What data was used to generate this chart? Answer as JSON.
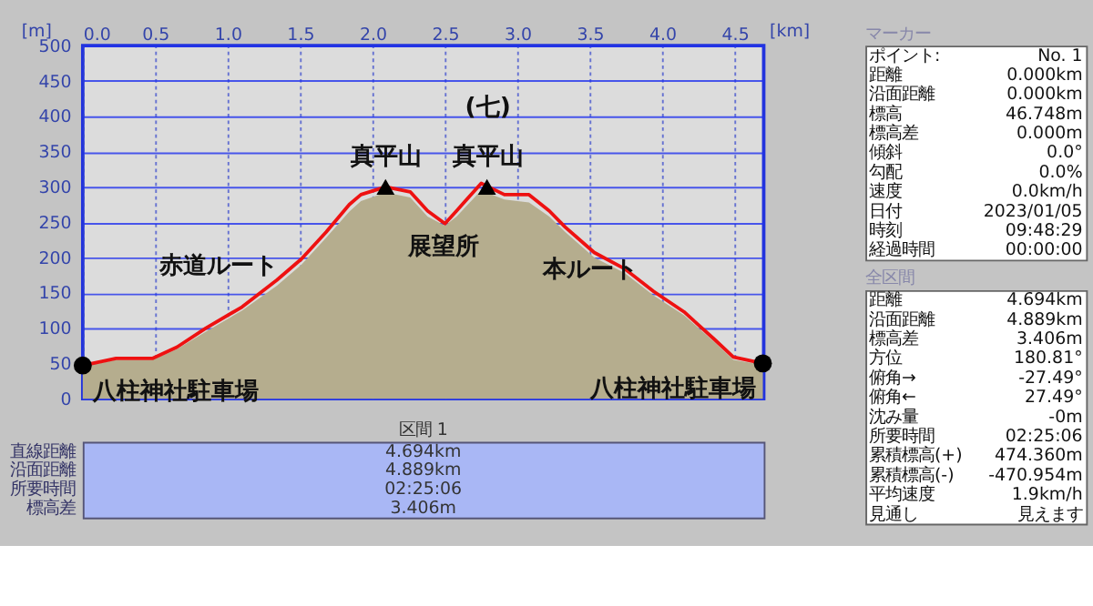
{
  "chart_data": [
    {
      "type": "line",
      "xlabel": "[km]",
      "ylabel": "[m]",
      "x": [
        0,
        0.23,
        0.48,
        0.65,
        0.85,
        1.1,
        1.34,
        1.51,
        1.68,
        1.84,
        1.92,
        2.09,
        2.26,
        2.38,
        2.5,
        2.58,
        2.75,
        2.91,
        3.08,
        3.22,
        3.33,
        3.53,
        3.74,
        3.94,
        4.15,
        4.36,
        4.49,
        4.694
      ],
      "series": [
        {
          "type": "area",
          "color": "#b5ad8e",
          "values": [
            45,
            55,
            55,
            70,
            95,
            125,
            160,
            190,
            228,
            265,
            280,
            292,
            285,
            258,
            245,
            258,
            295,
            282,
            278,
            258,
            236,
            200,
            178,
            146,
            118,
            80,
            55,
            48
          ]
        },
        {
          "type": "line",
          "color": "#ee1111",
          "values": [
            47,
            57,
            57,
            73,
            100,
            130,
            168,
            198,
            236,
            275,
            289,
            300,
            293,
            266,
            248,
            266,
            305,
            289,
            289,
            266,
            243,
            207,
            184,
            152,
            123,
            84,
            59,
            50
          ]
        },
        {
          "type": "scatter",
          "marker": "circle",
          "color": "#000000",
          "x": [
            0,
            4.694
          ],
          "values": [
            47,
            50
          ]
        },
        {
          "type": "scatter",
          "marker": "triangle",
          "color": "#000000",
          "x": [
            2.09,
            2.79
          ],
          "values": [
            300,
            300
          ]
        }
      ],
      "xlim": [
        0,
        4.7
      ],
      "ylim": [
        0,
        500
      ],
      "xticks": [
        {
          "value": 0,
          "label": "0.0"
        },
        0.5,
        {
          "value": 1,
          "label": "1.0"
        },
        1.5,
        {
          "value": 2,
          "label": "2.0"
        },
        2.5,
        {
          "value": 3,
          "label": "3.0"
        },
        3.5,
        {
          "value": 4,
          "label": "4.0"
        },
        4.5
      ],
      "yticks": [
        0,
        50,
        100,
        150,
        200,
        250,
        300,
        350,
        400,
        450,
        500
      ],
      "grid": true,
      "annotations": [
        "真平山",
        "真平山",
        "(七)",
        "展望所",
        "赤道ルート",
        "本ルート",
        {
          "text": "八柱神社駐車場",
          "x": 0,
          "y": 47
        },
        {
          "text": "八柱神社駐車場",
          "x": 4.694,
          "y": 50
        }
      ]
    },
    {
      "type": "other",
      "title": "区間 1",
      "annotations": [
        "直線距離",
        "4.694km",
        "沿面距離",
        "4.889km",
        "所要時間",
        "02:25:06",
        "標高差",
        "3.406m"
      ]
    },
    {
      "type": "other",
      "title": "マーカー",
      "annotations": [
        "ポイント:",
        "No. 1",
        "距離",
        "0.000km",
        "沿面距離",
        "0.000km",
        "標高",
        "46.748m",
        "標高差",
        "0.000m",
        "傾斜",
        "0.0°",
        "勾配",
        "0.0%",
        "速度",
        "0.0km/h",
        "日付",
        "2023/01/05",
        "時刻",
        "09:48:29",
        "経過時間",
        "00:00:00"
      ]
    },
    {
      "type": "other",
      "title": "全区間",
      "annotations": [
        "距離",
        "4.694km",
        "沿面距離",
        "4.889km",
        "標高差",
        "3.406m",
        "方位",
        "180.81°",
        "俯角→",
        "-27.49°",
        "俯角←",
        "27.49°",
        "沈み量",
        "-0m",
        "所要時間",
        "02:25:06",
        "累積標高(+)",
        "474.360m",
        "累積標高(-)",
        "-470.954m",
        "平均速度",
        "1.9km/h",
        "見通し",
        "見えます"
      ]
    }
  ]
}
